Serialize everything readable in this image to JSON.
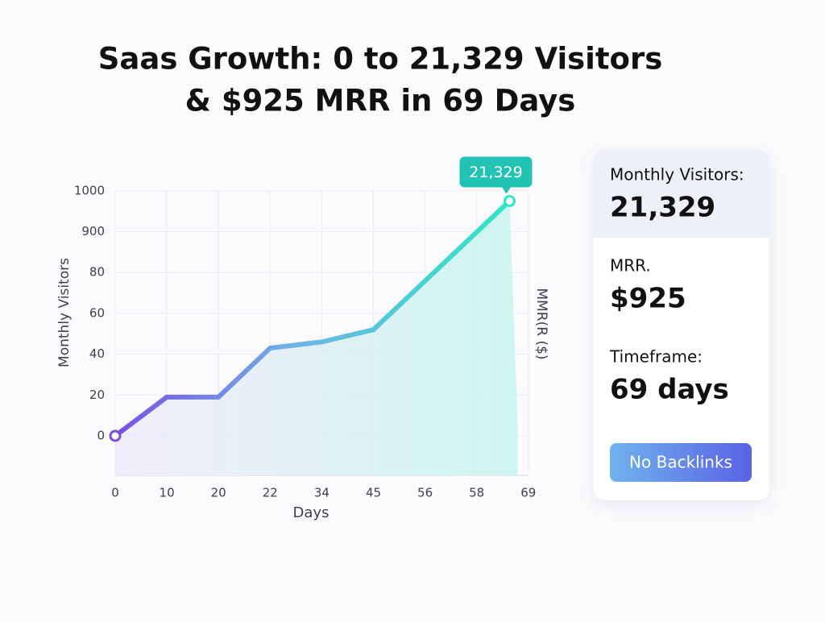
{
  "chart_data": {
    "type": "line",
    "title": [
      "Saas Growth: 0 to 21,329 Visitors",
      "& $925 MRR in 69 Days"
    ],
    "x_label": "Days",
    "y_label": "Monthly Visitors",
    "y2_label": "MMR(R ($)",
    "x": [
      0,
      10,
      20,
      22,
      34,
      45,
      65
    ],
    "series": [
      {
        "name": "Monthly Visitors",
        "color": [
          "#7b4fe0",
          "#2ee6c4"
        ],
        "values": [
          0,
          19,
          19,
          43,
          46,
          52,
          975
        ]
      }
    ],
    "annotation": "21,329",
    "xticks": [
      0,
      10,
      20,
      22,
      34,
      45,
      56,
      58,
      69
    ],
    "yticks": [
      0,
      20,
      40,
      60,
      80,
      900,
      1000
    ],
    "xlim": [
      0,
      69
    ],
    "ylim": [
      0,
      1000
    ],
    "grid": true
  },
  "panel": {
    "items": [
      {
        "label": "Monthly Visitors:",
        "value": "21,329"
      },
      {
        "label": "MRR.",
        "value": "$925"
      },
      {
        "label": "Timeframe:",
        "value": "69 days"
      }
    ],
    "button": "No Backlinks"
  }
}
